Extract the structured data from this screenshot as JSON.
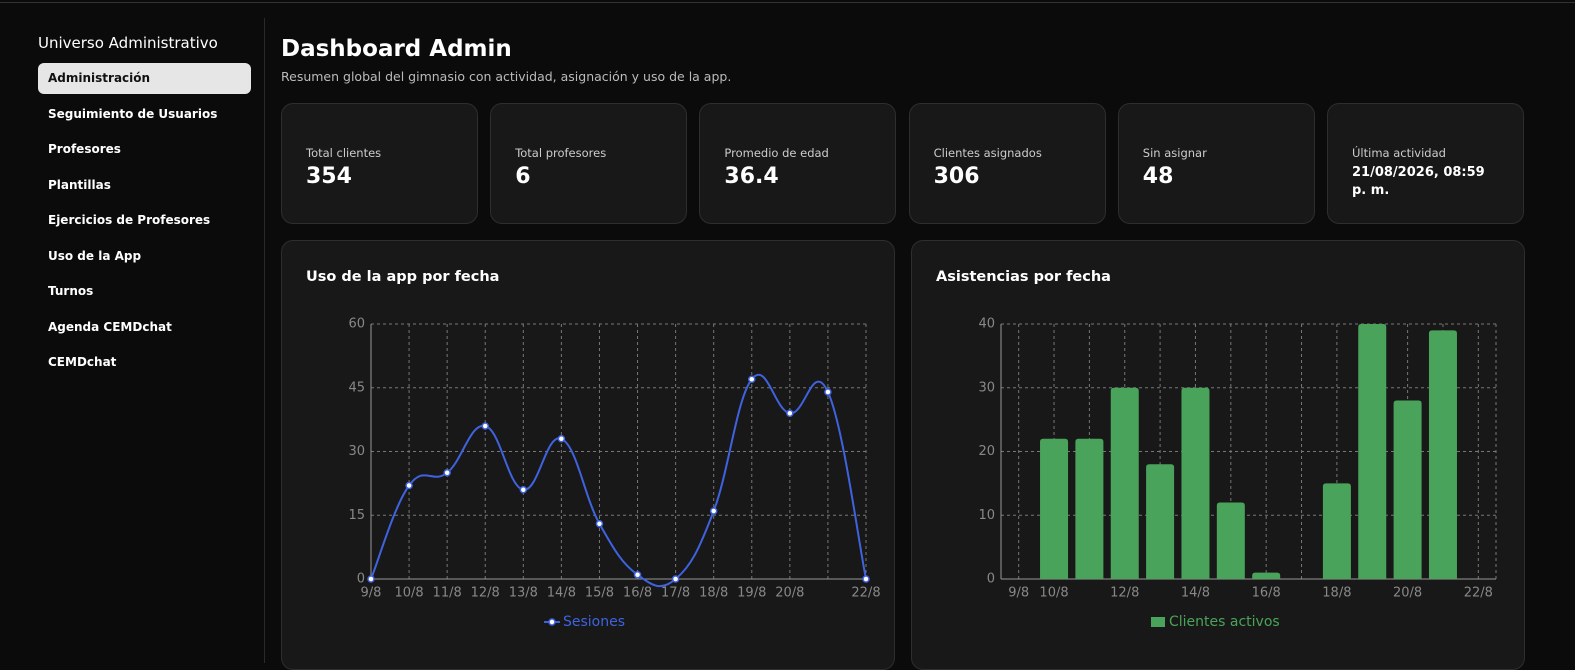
{
  "sidebar": {
    "title": "Universo Administrativo",
    "items": [
      "Administración",
      "Seguimiento de Usuarios",
      "Profesores",
      "Plantillas",
      "Ejercicios de Profesores",
      "Uso de la App",
      "Turnos",
      "Agenda CEMDchat",
      "CEMDchat"
    ]
  },
  "header": {
    "title": "Dashboard Admin",
    "subtitle": "Resumen global del gimnasio con actividad, asignación y uso de la app."
  },
  "stats": [
    {
      "label": "Total clientes",
      "value": "354"
    },
    {
      "label": "Total profesores",
      "value": "6"
    },
    {
      "label": "Promedio de edad",
      "value": "36.4"
    },
    {
      "label": "Clientes asignados",
      "value": "306"
    },
    {
      "label": "Sin asignar",
      "value": "48"
    },
    {
      "label": "Última actividad",
      "value": "21/08/2026, 08:59 p. m."
    }
  ],
  "chart_data": [
    {
      "type": "line",
      "title": "Uso de la app por fecha",
      "categories": [
        "9/8",
        "10/8",
        "11/8",
        "12/8",
        "13/8",
        "14/8",
        "15/8",
        "16/8",
        "17/8",
        "18/8",
        "19/8",
        "20/8",
        null,
        "22/8"
      ],
      "series": [
        {
          "name": "Sesiones",
          "color": "#3f63e0",
          "values": [
            0,
            22,
            25,
            36,
            21,
            33,
            13,
            1,
            0,
            16,
            47,
            39,
            44,
            0
          ]
        }
      ],
      "ylim": [
        0,
        60
      ],
      "yticks": [
        0,
        15,
        30,
        45,
        60
      ],
      "grid": true
    },
    {
      "type": "bar",
      "title": "Asistencias por fecha",
      "categories": [
        "9/8",
        "10/8",
        null,
        "12/8",
        null,
        "14/8",
        null,
        "16/8",
        null,
        "18/8",
        null,
        "20/8",
        null,
        "22/8"
      ],
      "series": [
        {
          "name": "Clientes activos",
          "color": "#4aa35a",
          "values": [
            0,
            22,
            22,
            30,
            18,
            30,
            12,
            1,
            0,
            15,
            40,
            28,
            39,
            0
          ]
        }
      ],
      "ylim": [
        0,
        40
      ],
      "yticks": [
        0,
        10,
        20,
        30,
        40
      ],
      "grid": true
    }
  ]
}
